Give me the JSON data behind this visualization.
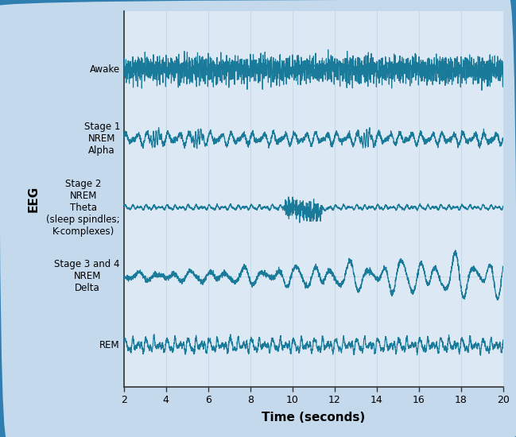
{
  "title": "",
  "xlabel": "Time (seconds)",
  "ylabel": "EEG",
  "x_start": 2,
  "x_end": 20,
  "x_ticks": [
    2,
    4,
    6,
    8,
    10,
    12,
    14,
    16,
    18,
    20
  ],
  "wave_color": "#1a7a9a",
  "background_color": "#dce9f5",
  "outer_background": "#c5d9ed",
  "grid_color": "#c8d8e8",
  "border_color": "#2e7fb0",
  "stages": [
    "Awake",
    "Stage 1\nNREM\nAlpha",
    "Stage 2\nNREM\nTheta\n(sleep spindles;\nK-complexes)",
    "Stage 3 and 4\nNREM\nDelta",
    "REM"
  ],
  "stage_y_positions": [
    5,
    4,
    3,
    2,
    1
  ],
  "ylim": [
    0.4,
    5.85
  ],
  "fig_width": 6.49,
  "fig_height": 5.5,
  "dpi": 100
}
